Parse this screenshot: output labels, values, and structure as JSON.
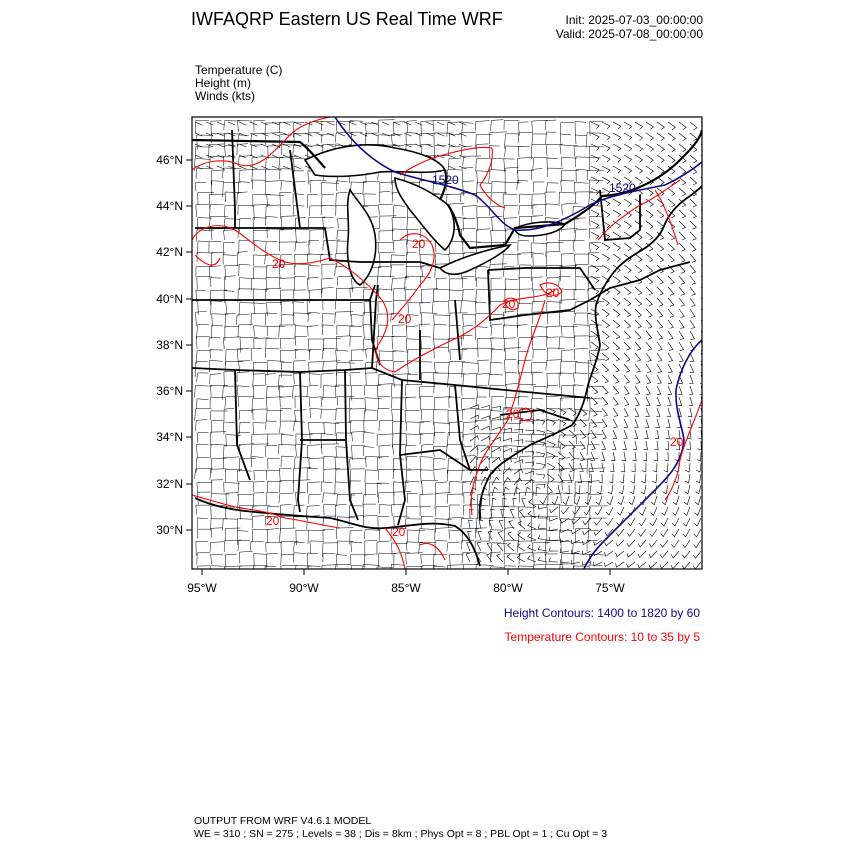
{
  "header": {
    "title": "IWFAQRP Eastern US Real Time WRF",
    "init": "Init: 2025-07-03_00:00:00",
    "valid": "Valid: 2025-07-08_00:00:00"
  },
  "legend": {
    "temperature": "Temperature   (C)",
    "height": "Height   (m)",
    "winds": "Winds   (kts)"
  },
  "axes": {
    "lat_labels": [
      "46°N",
      "44°N",
      "42°N",
      "40°N",
      "38°N",
      "36°N",
      "34°N",
      "32°N",
      "30°N"
    ],
    "lon_labels": [
      "95°W",
      "90°W",
      "85°W",
      "80°W",
      "75°W"
    ]
  },
  "contour_labels": {
    "height": [
      "1520",
      "1520"
    ],
    "temperature": [
      "20",
      "20",
      "20",
      "20",
      "20",
      "20",
      "20",
      "20",
      "20"
    ]
  },
  "notes": {
    "height_contours": "Height Contours: 1400 to 1820 by 60",
    "temperature_contours": "Temperature Contours: 10 to 35 by 5"
  },
  "footer": {
    "line1": "OUTPUT FROM WRF V4.6.1 MODEL",
    "line2": "WE = 310 ; SN = 275 ; Levels = 38 ; Dis = 8km ; Phys Opt = 8 ; PBL Opt = 1 ; Cu Opt = 3"
  },
  "colors": {
    "height": "#0b0b8c",
    "temperature": "#ff0000",
    "map_lines": "#000000"
  }
}
